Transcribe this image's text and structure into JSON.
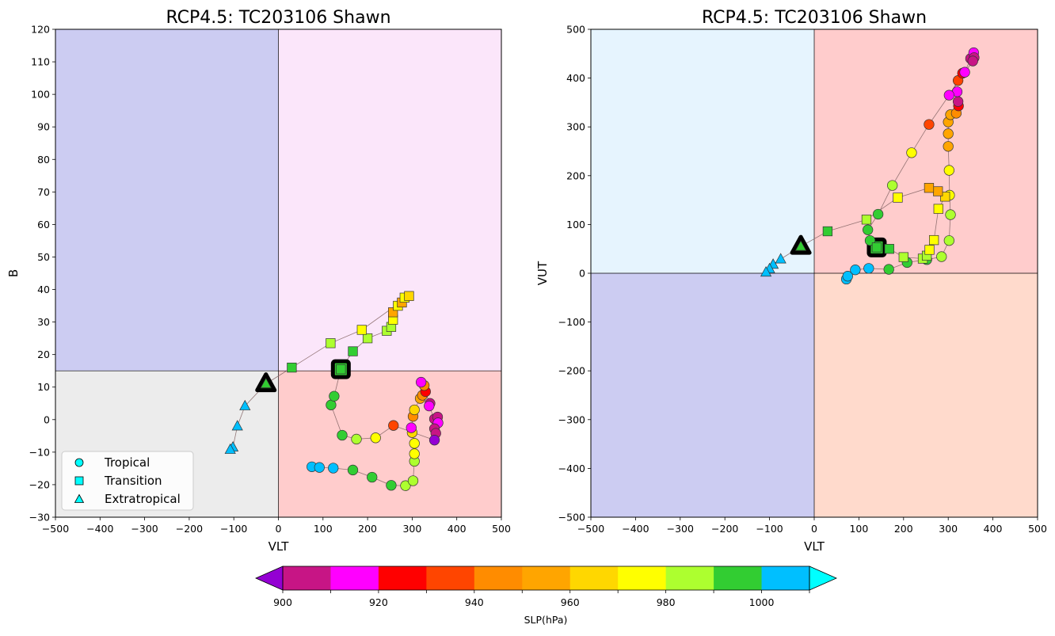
{
  "figure": {
    "colorbar": {
      "label": "SLP(hPa)",
      "bounds": [
        900,
        910,
        920,
        930,
        940,
        950,
        960,
        970,
        980,
        990,
        1000,
        1010
      ],
      "colors": [
        "#c71585",
        "#ff00ff",
        "#ff0000",
        "#ff4500",
        "#ff8c00",
        "#ffa500",
        "#ffd700",
        "#ffff00",
        "#adff2f",
        "#32cd32",
        "#00bfff"
      ],
      "under_color": "#9400d3",
      "over_color": "#00ffff",
      "tick_labels": [
        "900",
        "920",
        "940",
        "960",
        "980",
        "1000"
      ]
    },
    "legend": {
      "placement": "lower-left",
      "entries": [
        {
          "label": "Tropical",
          "marker": "circle"
        },
        {
          "label": "Transition",
          "marker": "square"
        },
        {
          "label": "Extratropical",
          "marker": "triangle"
        }
      ]
    }
  },
  "chart_data": [
    {
      "type": "scatter",
      "title": "RCP4.5: TC203106 Shawn",
      "xlabel": "VLT",
      "ylabel": "B",
      "xlim": [
        -500,
        500
      ],
      "ylim": [
        -30,
        120
      ],
      "xticks": [
        -500,
        -400,
        -300,
        -200,
        -100,
        0,
        100,
        200,
        300,
        400,
        500
      ],
      "yticks": [
        -30,
        -20,
        -10,
        0,
        10,
        20,
        30,
        40,
        50,
        60,
        70,
        80,
        90,
        100,
        110,
        120
      ],
      "divider": {
        "x": 0,
        "y": 15
      },
      "quadrant_colors": {
        "upper_left": "#ccccf2",
        "upper_right": "#fbe6fa",
        "lower_left": "#ececec",
        "lower_right": "#ffcccc"
      },
      "grid": false,
      "start_marker": {
        "x": 140,
        "y": 15.5,
        "shape": "square"
      },
      "end_marker": {
        "x": -28,
        "y": 11,
        "shape": "triangle"
      },
      "points": [
        {
          "x": 75,
          "y": -14.5,
          "slp": 1004,
          "shape": "circle"
        },
        {
          "x": 92,
          "y": -14.7,
          "slp": 1004,
          "shape": "circle"
        },
        {
          "x": 123,
          "y": -14.9,
          "slp": 1003,
          "shape": "circle"
        },
        {
          "x": 167,
          "y": -15.5,
          "slp": 996,
          "shape": "circle"
        },
        {
          "x": 210,
          "y": -17.7,
          "slp": 995,
          "shape": "circle"
        },
        {
          "x": 253,
          "y": -20.2,
          "slp": 993,
          "shape": "circle"
        },
        {
          "x": 285,
          "y": -20.3,
          "slp": 985,
          "shape": "circle"
        },
        {
          "x": 302,
          "y": -18.8,
          "slp": 983,
          "shape": "circle"
        },
        {
          "x": 305,
          "y": -12.8,
          "slp": 981,
          "shape": "circle"
        },
        {
          "x": 305,
          "y": -10.5,
          "slp": 975,
          "shape": "circle"
        },
        {
          "x": 305,
          "y": -7.3,
          "slp": 972,
          "shape": "circle"
        },
        {
          "x": 300,
          "y": -4,
          "slp": 966,
          "shape": "circle"
        },
        {
          "x": 298,
          "y": -2.5,
          "slp": 915,
          "shape": "circle"
        },
        {
          "x": 302,
          "y": 1,
          "slp": 948,
          "shape": "circle"
        },
        {
          "x": 305,
          "y": 3,
          "slp": 963,
          "shape": "circle"
        },
        {
          "x": 318,
          "y": 6.5,
          "slp": 955,
          "shape": "circle"
        },
        {
          "x": 323,
          "y": 7.5,
          "slp": 945,
          "shape": "circle"
        },
        {
          "x": 330,
          "y": 8.6,
          "slp": 925,
          "shape": "circle"
        },
        {
          "x": 327,
          "y": 10.5,
          "slp": 945,
          "shape": "circle"
        },
        {
          "x": 320,
          "y": 11.5,
          "slp": 912,
          "shape": "circle"
        },
        {
          "x": 340,
          "y": 5,
          "slp": 905,
          "shape": "circle"
        },
        {
          "x": 338,
          "y": 4.2,
          "slp": 915,
          "shape": "circle"
        },
        {
          "x": 350,
          "y": 0.2,
          "slp": 903,
          "shape": "circle"
        },
        {
          "x": 357,
          "y": 0.8,
          "slp": 905,
          "shape": "circle"
        },
        {
          "x": 358,
          "y": -1,
          "slp": 912,
          "shape": "circle"
        },
        {
          "x": 350,
          "y": -2.8,
          "slp": 905,
          "shape": "circle"
        },
        {
          "x": 353,
          "y": -4.2,
          "slp": 903,
          "shape": "circle"
        },
        {
          "x": 350,
          "y": -6.3,
          "slp": 897,
          "shape": "circle"
        },
        {
          "x": 258,
          "y": -1.8,
          "slp": 935,
          "shape": "circle"
        },
        {
          "x": 218,
          "y": -5.6,
          "slp": 975,
          "shape": "circle"
        },
        {
          "x": 175,
          "y": -6,
          "slp": 985,
          "shape": "circle"
        },
        {
          "x": 143,
          "y": -4.8,
          "slp": 995,
          "shape": "circle"
        },
        {
          "x": 118,
          "y": 4.5,
          "slp": 995,
          "shape": "circle"
        },
        {
          "x": 125,
          "y": 7.2,
          "slp": 995,
          "shape": "circle"
        },
        {
          "x": 140,
          "y": 15.5,
          "slp": 995,
          "shape": "square"
        },
        {
          "x": 167,
          "y": 21,
          "slp": 995,
          "shape": "square"
        },
        {
          "x": 200,
          "y": 25,
          "slp": 985,
          "shape": "square"
        },
        {
          "x": 243,
          "y": 27.3,
          "slp": 985,
          "shape": "square"
        },
        {
          "x": 253,
          "y": 28.5,
          "slp": 985,
          "shape": "square"
        },
        {
          "x": 257,
          "y": 30.7,
          "slp": 970,
          "shape": "square"
        },
        {
          "x": 257,
          "y": 33,
          "slp": 955,
          "shape": "square"
        },
        {
          "x": 268,
          "y": 35,
          "slp": 975,
          "shape": "square"
        },
        {
          "x": 277,
          "y": 36,
          "slp": 955,
          "shape": "square"
        },
        {
          "x": 283,
          "y": 37.5,
          "slp": 975,
          "shape": "square"
        },
        {
          "x": 293,
          "y": 38,
          "slp": 965,
          "shape": "square"
        },
        {
          "x": 187,
          "y": 27.6,
          "slp": 975,
          "shape": "square"
        },
        {
          "x": 117,
          "y": 23.5,
          "slp": 985,
          "shape": "square"
        },
        {
          "x": 30,
          "y": 16,
          "slp": 995,
          "shape": "square"
        },
        {
          "x": -28,
          "y": 11,
          "slp": 995,
          "shape": "triangle"
        },
        {
          "x": -75,
          "y": 4.2,
          "slp": 1004,
          "shape": "triangle"
        },
        {
          "x": -92,
          "y": -2,
          "slp": 1004,
          "shape": "triangle"
        },
        {
          "x": -102,
          "y": -8.5,
          "slp": 1004,
          "shape": "triangle"
        },
        {
          "x": -108,
          "y": -9.2,
          "slp": 1004,
          "shape": "triangle"
        }
      ]
    },
    {
      "type": "scatter",
      "title": "RCP4.5: TC203106 Shawn",
      "xlabel": "VLT",
      "ylabel": "VUT",
      "xlim": [
        -500,
        500
      ],
      "ylim": [
        -500,
        500
      ],
      "xticks": [
        -500,
        -400,
        -300,
        -200,
        -100,
        0,
        100,
        200,
        300,
        400,
        500
      ],
      "yticks": [
        -500,
        -400,
        -300,
        -200,
        -100,
        0,
        100,
        200,
        300,
        400,
        500
      ],
      "divider": {
        "x": 0,
        "y": 0
      },
      "quadrant_colors": {
        "upper_left": "#e6f4fe",
        "upper_right": "#ffcccc",
        "lower_left": "#ccccf2",
        "lower_right": "#ffdacc"
      },
      "grid": false,
      "start_marker": {
        "x": 140,
        "y": 53,
        "shape": "square"
      },
      "end_marker": {
        "x": -30,
        "y": 55,
        "shape": "triangle"
      },
      "points": [
        {
          "x": 72,
          "y": -12,
          "slp": 1004,
          "shape": "circle"
        },
        {
          "x": 75,
          "y": -6,
          "slp": 1004,
          "shape": "circle"
        },
        {
          "x": 92,
          "y": 7,
          "slp": 1004,
          "shape": "circle"
        },
        {
          "x": 122,
          "y": 10,
          "slp": 1004,
          "shape": "circle"
        },
        {
          "x": 167,
          "y": 8,
          "slp": 995,
          "shape": "circle"
        },
        {
          "x": 208,
          "y": 22,
          "slp": 995,
          "shape": "circle"
        },
        {
          "x": 252,
          "y": 28,
          "slp": 995,
          "shape": "circle"
        },
        {
          "x": 285,
          "y": 34,
          "slp": 985,
          "shape": "circle"
        },
        {
          "x": 302,
          "y": 67,
          "slp": 985,
          "shape": "circle"
        },
        {
          "x": 305,
          "y": 120,
          "slp": 985,
          "shape": "circle"
        },
        {
          "x": 303,
          "y": 160,
          "slp": 975,
          "shape": "circle"
        },
        {
          "x": 302,
          "y": 211,
          "slp": 975,
          "shape": "circle"
        },
        {
          "x": 300,
          "y": 260,
          "slp": 955,
          "shape": "circle"
        },
        {
          "x": 300,
          "y": 286,
          "slp": 955,
          "shape": "circle"
        },
        {
          "x": 300,
          "y": 310,
          "slp": 955,
          "shape": "circle"
        },
        {
          "x": 305,
          "y": 325,
          "slp": 955,
          "shape": "circle"
        },
        {
          "x": 318,
          "y": 328,
          "slp": 945,
          "shape": "circle"
        },
        {
          "x": 323,
          "y": 343,
          "slp": 925,
          "shape": "circle"
        },
        {
          "x": 322,
          "y": 352,
          "slp": 905,
          "shape": "circle"
        },
        {
          "x": 320,
          "y": 372,
          "slp": 915,
          "shape": "circle"
        },
        {
          "x": 302,
          "y": 365,
          "slp": 915,
          "shape": "circle"
        },
        {
          "x": 322,
          "y": 395,
          "slp": 935,
          "shape": "circle"
        },
        {
          "x": 332,
          "y": 410,
          "slp": 925,
          "shape": "circle"
        },
        {
          "x": 337,
          "y": 412,
          "slp": 915,
          "shape": "circle"
        },
        {
          "x": 350,
          "y": 440,
          "slp": 905,
          "shape": "circle"
        },
        {
          "x": 357,
          "y": 452,
          "slp": 915,
          "shape": "circle"
        },
        {
          "x": 358,
          "y": 442,
          "slp": 905,
          "shape": "circle"
        },
        {
          "x": 355,
          "y": 435,
          "slp": 905,
          "shape": "circle"
        },
        {
          "x": 257,
          "y": 305,
          "slp": 935,
          "shape": "circle"
        },
        {
          "x": 218,
          "y": 247,
          "slp": 975,
          "shape": "circle"
        },
        {
          "x": 175,
          "y": 180,
          "slp": 985,
          "shape": "circle"
        },
        {
          "x": 143,
          "y": 121,
          "slp": 995,
          "shape": "circle"
        },
        {
          "x": 120,
          "y": 89,
          "slp": 995,
          "shape": "circle"
        },
        {
          "x": 125,
          "y": 67,
          "slp": 995,
          "shape": "circle"
        },
        {
          "x": 140,
          "y": 53,
          "slp": 995,
          "shape": "square"
        },
        {
          "x": 168,
          "y": 50,
          "slp": 995,
          "shape": "square"
        },
        {
          "x": 200,
          "y": 33,
          "slp": 985,
          "shape": "square"
        },
        {
          "x": 243,
          "y": 30,
          "slp": 985,
          "shape": "square"
        },
        {
          "x": 252,
          "y": 36,
          "slp": 985,
          "shape": "square"
        },
        {
          "x": 258,
          "y": 48,
          "slp": 975,
          "shape": "square"
        },
        {
          "x": 268,
          "y": 68,
          "slp": 975,
          "shape": "square"
        },
        {
          "x": 278,
          "y": 132,
          "slp": 975,
          "shape": "square"
        },
        {
          "x": 293,
          "y": 157,
          "slp": 965,
          "shape": "square"
        },
        {
          "x": 277,
          "y": 168,
          "slp": 955,
          "shape": "square"
        },
        {
          "x": 257,
          "y": 175,
          "slp": 955,
          "shape": "square"
        },
        {
          "x": 187,
          "y": 155,
          "slp": 975,
          "shape": "square"
        },
        {
          "x": 117,
          "y": 110,
          "slp": 985,
          "shape": "square"
        },
        {
          "x": 30,
          "y": 86,
          "slp": 995,
          "shape": "square"
        },
        {
          "x": -30,
          "y": 55,
          "slp": 995,
          "shape": "triangle"
        },
        {
          "x": -75,
          "y": 29,
          "slp": 1004,
          "shape": "triangle"
        },
        {
          "x": -92,
          "y": 18,
          "slp": 1004,
          "shape": "triangle"
        },
        {
          "x": -100,
          "y": 9,
          "slp": 1004,
          "shape": "triangle"
        },
        {
          "x": -108,
          "y": 2,
          "slp": 1004,
          "shape": "triangle"
        }
      ]
    }
  ]
}
